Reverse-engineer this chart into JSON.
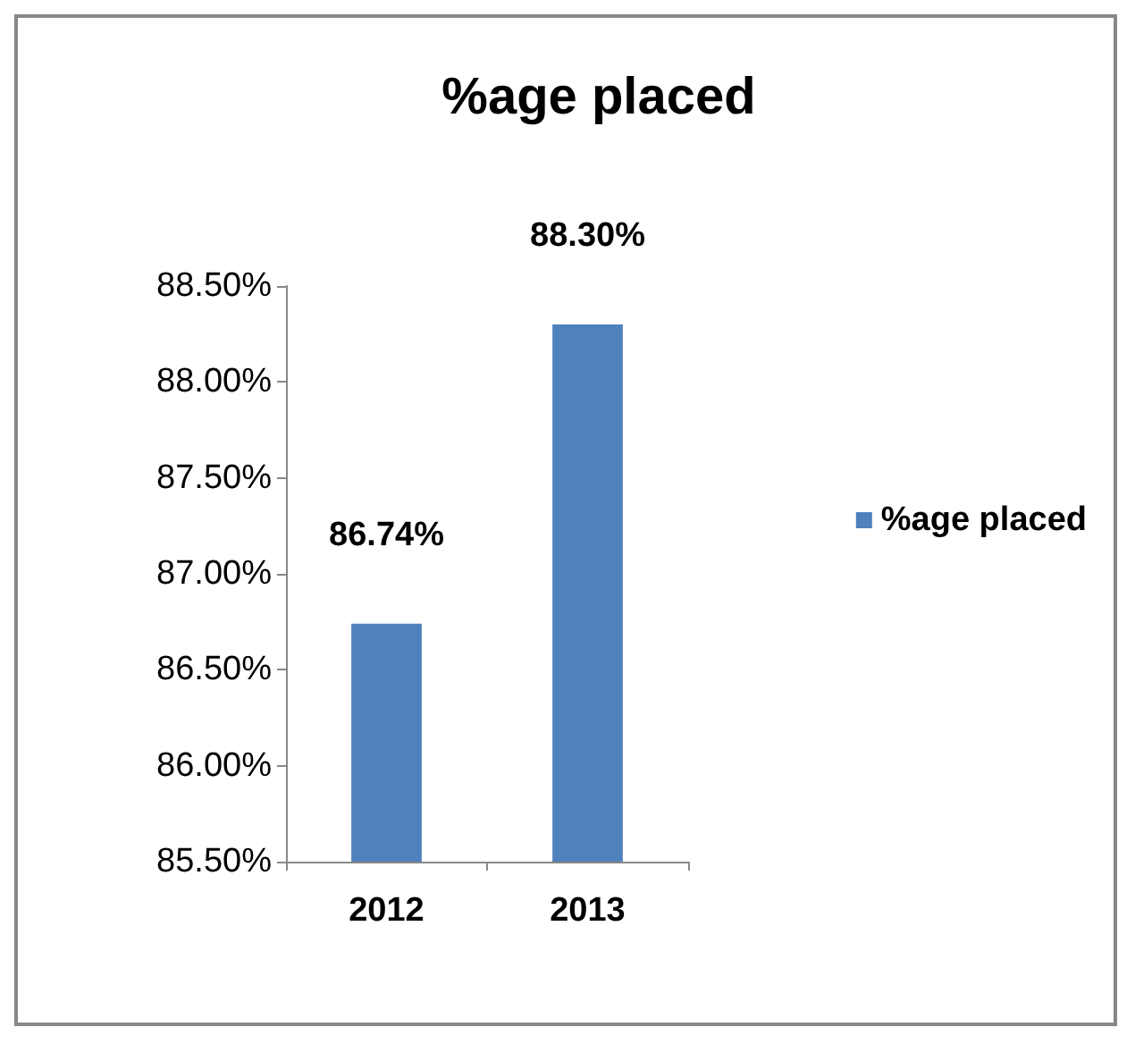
{
  "chart_data": {
    "type": "bar",
    "title": "%age placed",
    "categories": [
      "2012",
      "2013"
    ],
    "series": [
      {
        "name": "%age placed",
        "color": "#4f81bd",
        "values": [
          86.74,
          88.3
        ],
        "value_labels": [
          "86.74%",
          "88.30%"
        ]
      }
    ],
    "ylim": [
      85.5,
      88.5
    ],
    "yticks": [
      {
        "value": 85.5,
        "label": "85.50%"
      },
      {
        "value": 86,
        "label": "86.00%"
      },
      {
        "value": 86.5,
        "label": "86.50%"
      },
      {
        "value": 87,
        "label": "87.00%"
      },
      {
        "value": 87.5,
        "label": "87.50%"
      },
      {
        "value": 88,
        "label": "88.00%"
      },
      {
        "value": 88.5,
        "label": "88.50%"
      }
    ],
    "grid": false,
    "legend": "right"
  }
}
